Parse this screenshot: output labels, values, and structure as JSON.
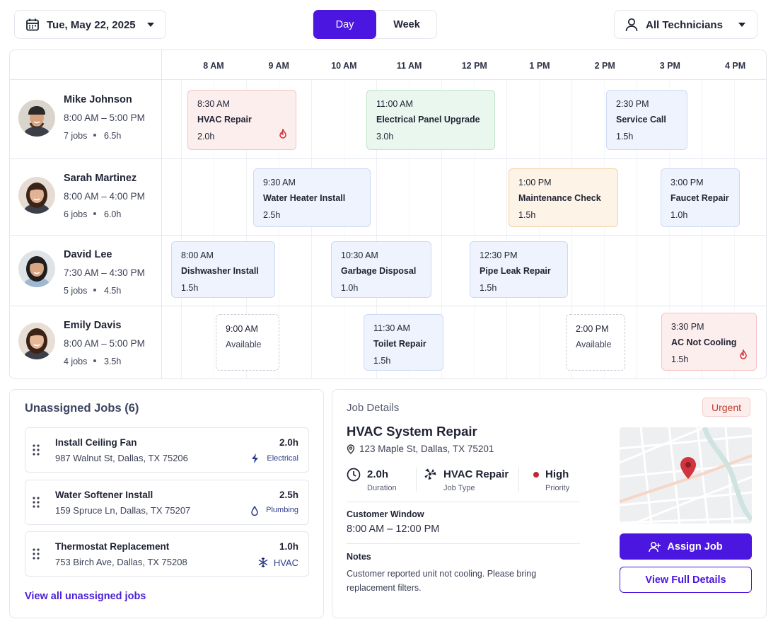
{
  "toolbar": {
    "date": "Tue, May 22, 2025",
    "views": [
      "Day",
      "Week"
    ],
    "technician_filter": "All Technicians"
  },
  "schedule": {
    "hours": [
      "8 AM",
      "9 AM",
      "10 AM",
      "11 AM",
      "12 PM",
      "1 PM",
      "2 PM",
      "3 PM",
      "4 PM"
    ],
    "technicians": [
      {
        "name": "Mike Johnson",
        "hours": "8:00 AM – 5:00 PM",
        "jobs": "7 jobs",
        "duration": "6.5h",
        "appointments": [
          {
            "time": "8:30 AM",
            "title": "HVAC Repair",
            "duration": "2.0h"
          },
          {
            "time": "11:00 AM",
            "title": "Electrical Panel Upgrade",
            "duration": "3.0h"
          },
          {
            "time": "2:30 PM",
            "title": "Service Call",
            "duration": "1.5h"
          }
        ]
      },
      {
        "name": "Sarah Martinez",
        "hours": "8:00 AM – 4:00 PM",
        "jobs": "6 jobs",
        "duration": "6.0h",
        "appointments": [
          {
            "time": "9:30 AM",
            "title": "Water Heater Install",
            "duration": "2.5h"
          },
          {
            "time": "1:00 PM",
            "title": "Maintenance Check",
            "duration": "1.5h"
          },
          {
            "time": "3:00 PM",
            "title": "Faucet Repair",
            "duration": "1.0h"
          }
        ]
      },
      {
        "name": "David Lee",
        "hours": "7:30 AM – 4:30 PM",
        "jobs": "5 jobs",
        "duration": "4.5h",
        "appointments": [
          {
            "time": "8:00 AM",
            "title": "Dishwasher Install",
            "duration": "1.5h"
          },
          {
            "time": "10:30 AM",
            "title": "Garbage Disposal",
            "duration": "1.0h"
          },
          {
            "time": "12:30 PM",
            "title": "Pipe Leak Repair",
            "duration": "1.5h"
          }
        ]
      },
      {
        "name": "Emily Davis",
        "hours": "8:00 AM – 5:00 PM",
        "jobs": "4 jobs",
        "duration": "3.5h",
        "appointments": [
          {
            "time": "9:00 AM",
            "title": "Available"
          },
          {
            "time": "11:30 AM",
            "title": "Toilet Repair",
            "duration": "1.5h"
          },
          {
            "time": "2:00 PM",
            "title": "Available"
          },
          {
            "time": "3:30 PM",
            "title": "AC Not Cooling",
            "duration": "1.5h"
          }
        ]
      }
    ]
  },
  "unassigned": {
    "title": "Unassigned Jobs (6)",
    "jobs": [
      {
        "name": "Install Ceiling Fan",
        "address": "987 Walnut St, Dallas, TX 75206",
        "duration": "2.0h",
        "category": "Electrical"
      },
      {
        "name": "Water Softener Install",
        "address": "159 Spruce Ln, Dallas, TX 75207",
        "duration": "2.5h",
        "category": "Plumbing"
      },
      {
        "name": "Thermostat Replacement",
        "address": "753 Birch Ave, Dallas, TX 75208",
        "duration": "1.0h",
        "category": "HVAC"
      }
    ],
    "link": "View all unassigned jobs"
  },
  "job_details": {
    "heading": "Job Details",
    "badge": "Urgent",
    "title": "HVAC System Repair",
    "address": "123 Maple St, Dallas, TX 75201",
    "stats": [
      {
        "value": "2.0h",
        "label": "Duration"
      },
      {
        "value": "HVAC Repair",
        "label": "Job Type"
      },
      {
        "value": "High",
        "label": "Priority"
      }
    ],
    "customer_window_label": "Customer Window",
    "customer_window": "8:00 AM – 12:00 PM",
    "notes_label": "Notes",
    "notes": "Customer reported unit not cooling. Please bring replacement filters.",
    "buttons": [
      "Assign Job",
      "View Full Details"
    ]
  }
}
